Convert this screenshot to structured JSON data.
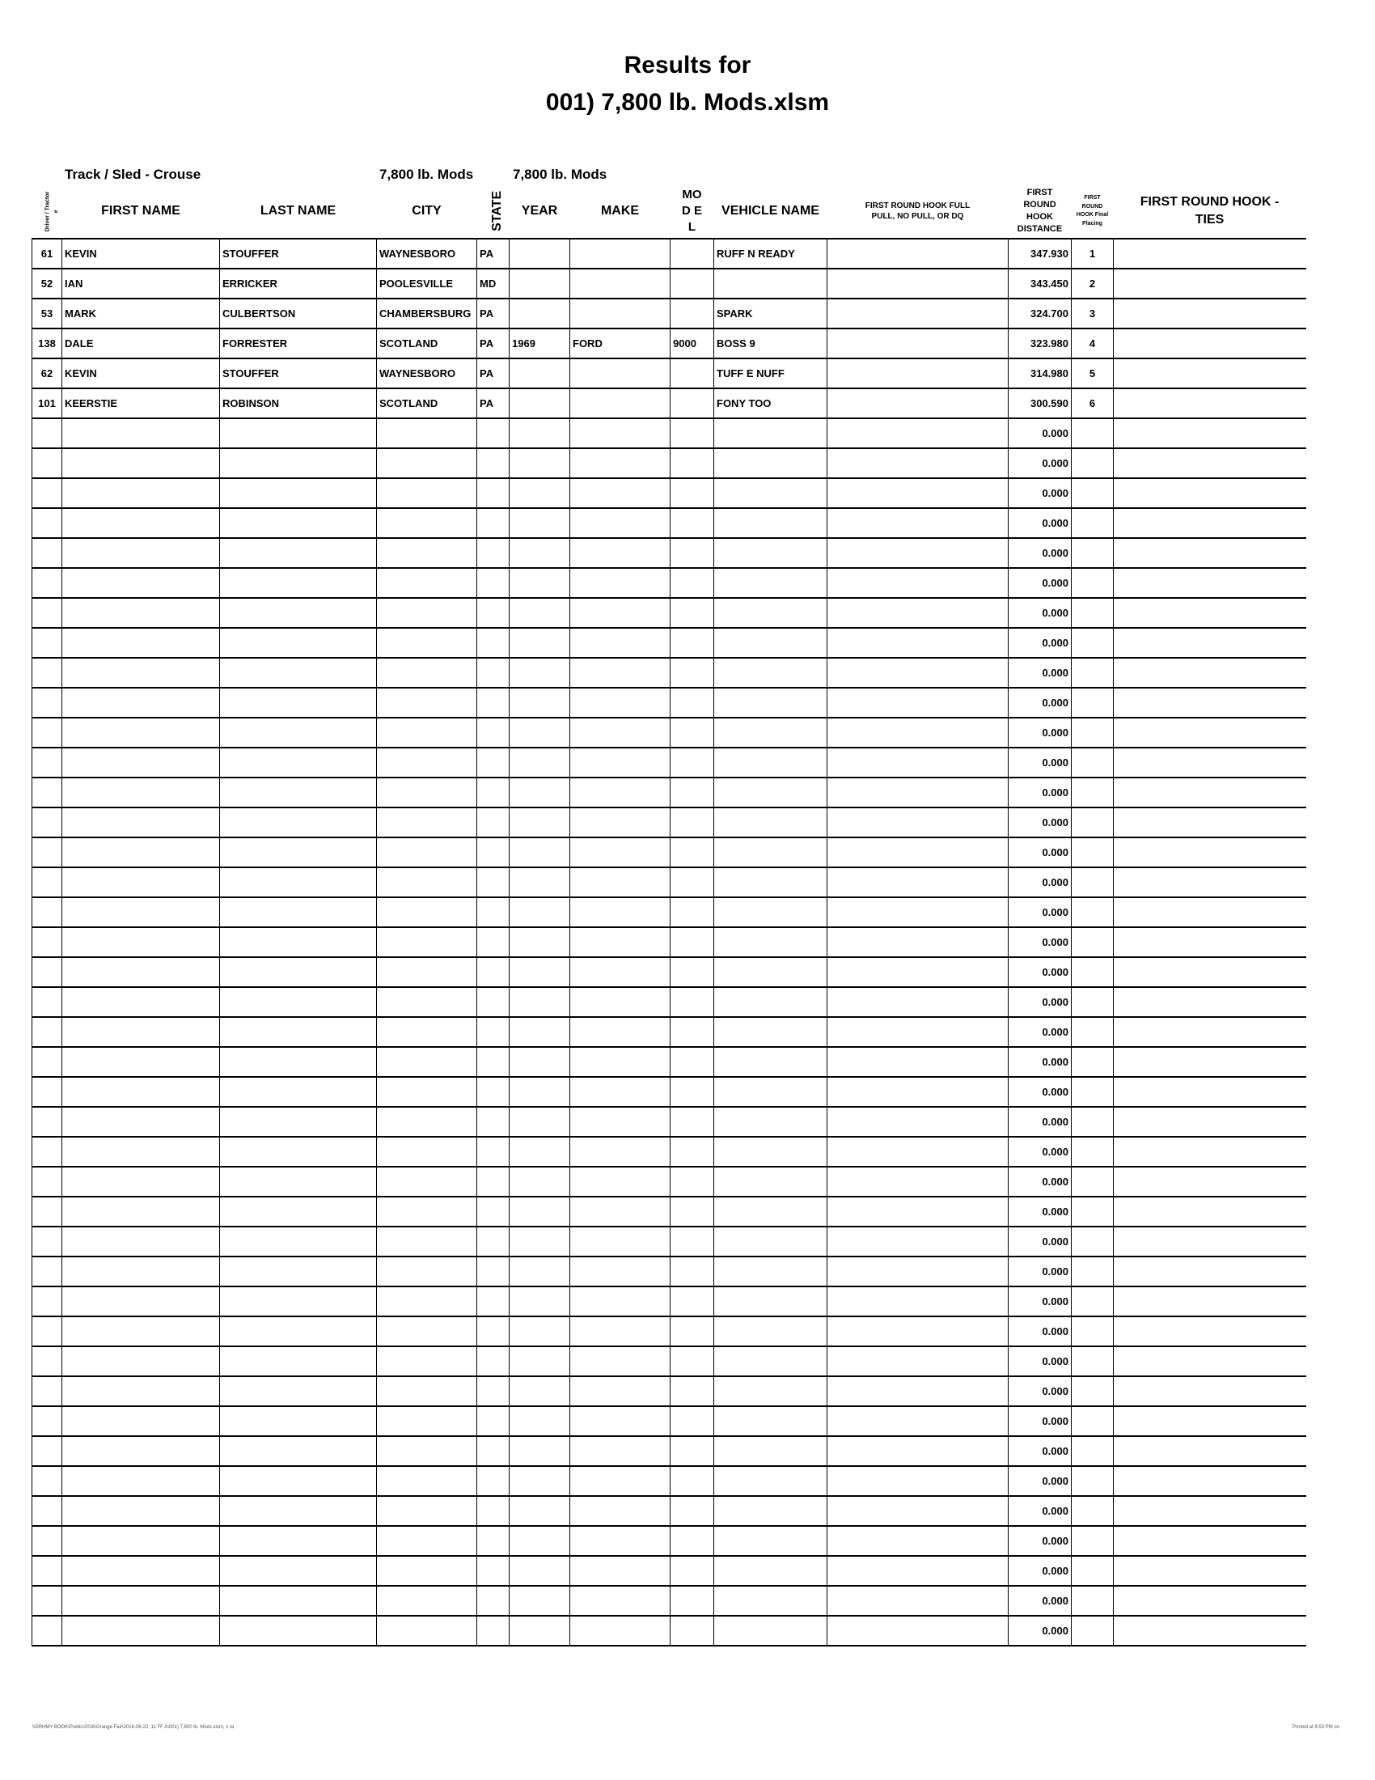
{
  "title_line1": "Results for",
  "title_line2": "001) 7,800 lb. Mods.xlsm",
  "track_sled": "Track / Sled - Crouse",
  "class_1": "7,800 lb. Mods",
  "class_2": "7,800 lb. Mods",
  "columns": {
    "num": "Driver / Tractor #",
    "first": "FIRST NAME",
    "last": "LAST NAME",
    "city": "CITY",
    "state": "STATE",
    "year": "YEAR",
    "make": "MAKE",
    "model": "MOD EL",
    "vehicle": "VEHICLE NAME",
    "status": "FIRST ROUND HOOK FULL PULL, NO PULL, OR DQ",
    "distance": "FIRST ROUND HOOK DISTANCE",
    "placing": "FIRST ROUND HOOK Final Placing",
    "ties": "FIRST ROUND HOOK - TIES"
  },
  "rows": [
    {
      "num": "61",
      "first": "KEVIN",
      "last": "STOUFFER",
      "city": "WAYNESBORO",
      "state": "PA",
      "year": "",
      "make": "",
      "model": "",
      "vehicle": "RUFF N READY",
      "status": "",
      "distance": "347.930",
      "placing": "1",
      "ties": ""
    },
    {
      "num": "52",
      "first": "IAN",
      "last": "ERRICKER",
      "city": "POOLESVILLE",
      "state": "MD",
      "year": "",
      "make": "",
      "model": "",
      "vehicle": "",
      "status": "",
      "distance": "343.450",
      "placing": "2",
      "ties": ""
    },
    {
      "num": "53",
      "first": "MARK",
      "last": "CULBERTSON",
      "city": "CHAMBERSBURG",
      "state": "PA",
      "year": "",
      "make": "",
      "model": "",
      "vehicle": "SPARK",
      "status": "",
      "distance": "324.700",
      "placing": "3",
      "ties": ""
    },
    {
      "num": "138",
      "first": "DALE",
      "last": "FORRESTER",
      "city": "SCOTLAND",
      "state": "PA",
      "year": "1969",
      "make": "FORD",
      "model": "9000",
      "vehicle": "BOSS 9",
      "status": "",
      "distance": "323.980",
      "placing": "4",
      "ties": ""
    },
    {
      "num": "62",
      "first": "KEVIN",
      "last": "STOUFFER",
      "city": "WAYNESBORO",
      "state": "PA",
      "year": "",
      "make": "",
      "model": "",
      "vehicle": "TUFF E NUFF",
      "status": "",
      "distance": "314.980",
      "placing": "5",
      "ties": ""
    },
    {
      "num": "101",
      "first": "KEERSTIE",
      "last": "ROBINSON",
      "city": "SCOTLAND",
      "state": "PA",
      "year": "",
      "make": "",
      "model": "",
      "vehicle": "FONY TOO",
      "status": "",
      "distance": "300.590",
      "placing": "6",
      "ties": ""
    }
  ],
  "empty_row_distances": [
    "0.000",
    "0.000",
    "0.000",
    "0.000",
    "0.000",
    "0.000",
    "0.000",
    "0.000",
    "0.000",
    "0.000",
    "0.000",
    "0.000",
    "0.000",
    "0.000",
    "0.000",
    "0.000",
    "0.000",
    "0.000",
    "0.000",
    "0.000",
    "0.000",
    "0.000",
    "0.000",
    "0.000",
    "0.000",
    "0.000",
    "0.000",
    "0.000",
    "0.000",
    "0.000",
    "0.000",
    "0.000",
    "0.000",
    "0.000",
    "0.000",
    "0.000",
    "0.000",
    "0.000",
    "0.000",
    "0.000",
    "0.000"
  ],
  "footer_left": "\\\\DRHMY BOOK\\Public\\2016\\Grange Fair\\2016-08-22, 11 FF A\\001) 7,800 lb. Mods.xlsm, 1 ta",
  "footer_right": "Printed at 9:53 PM on"
}
